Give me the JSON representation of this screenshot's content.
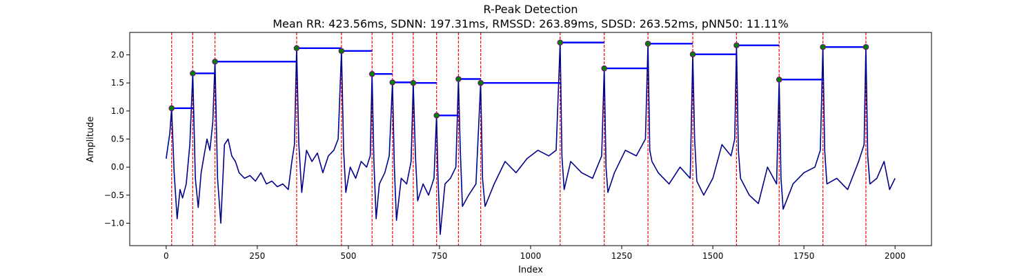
{
  "chart_data": {
    "type": "line",
    "title": "R-Peak Detection",
    "subtitle": "Mean RR: 423.56ms, SDNN: 197.31ms, RMSSD: 263.89ms, SDSD: 263.52ms, pNN50: 11.11%",
    "xlabel": "Index",
    "ylabel": "Amplitude",
    "xlim": [
      -100,
      2100
    ],
    "ylim": [
      -1.4,
      2.4
    ],
    "xticks": [
      0,
      250,
      500,
      750,
      1000,
      1250,
      1500,
      1750,
      2000
    ],
    "yticks": [
      -1.0,
      -0.5,
      0.0,
      0.5,
      1.0,
      1.5,
      2.0
    ],
    "xtick_labels": [
      "0",
      "250",
      "500",
      "750",
      "1000",
      "1250",
      "1500",
      "1750",
      "2000"
    ],
    "ytick_labels": [
      "−1.0",
      "−0.5",
      "0.0",
      "0.5",
      "1.0",
      "1.5",
      "2.0"
    ],
    "grid": false,
    "colors": {
      "signal": "#00008b",
      "peak_marker_fill": "#008000",
      "peak_marker_edge": "#800080",
      "peak_line": "#ff0000",
      "rr_segment": "#0000ff"
    },
    "peaks": {
      "x": [
        15,
        73,
        134,
        358,
        481,
        565,
        621,
        678,
        742,
        802,
        863,
        1081,
        1202,
        1322,
        1445,
        1565,
        1682,
        1802,
        1920
      ],
      "y": [
        1.05,
        1.67,
        1.88,
        2.12,
        2.07,
        1.66,
        1.51,
        1.5,
        0.92,
        1.57,
        1.5,
        2.22,
        1.76,
        2.2,
        2.01,
        2.17,
        1.56,
        2.14,
        2.14
      ]
    },
    "rr_segments": {
      "x_start": [
        15,
        73,
        134,
        358,
        481,
        565,
        621,
        678,
        742,
        802,
        863,
        1081,
        1202,
        1322,
        1445,
        1565,
        1682,
        1802
      ],
      "x_end": [
        73,
        134,
        358,
        481,
        565,
        621,
        678,
        742,
        802,
        863,
        1081,
        1202,
        1322,
        1445,
        1565,
        1682,
        1802,
        1920
      ],
      "y": [
        1.05,
        1.67,
        1.88,
        2.12,
        2.07,
        1.66,
        1.51,
        1.5,
        0.92,
        1.57,
        1.5,
        2.22,
        1.76,
        2.2,
        2.01,
        2.17,
        1.56,
        2.14
      ]
    },
    "signal": {
      "x": [
        0,
        5,
        10,
        15,
        22,
        30,
        38,
        45,
        55,
        65,
        73,
        80,
        88,
        96,
        104,
        112,
        120,
        128,
        134,
        141,
        150,
        160,
        170,
        180,
        190,
        200,
        215,
        230,
        245,
        260,
        275,
        290,
        305,
        320,
        335,
        345,
        352,
        358,
        364,
        372,
        385,
        400,
        415,
        430,
        445,
        460,
        472,
        481,
        487,
        493,
        505,
        520,
        535,
        550,
        560,
        565,
        570,
        576,
        585,
        600,
        612,
        621,
        626,
        632,
        645,
        660,
        672,
        678,
        684,
        690,
        705,
        720,
        735,
        742,
        746,
        752,
        765,
        780,
        795,
        802,
        807,
        813,
        830,
        850,
        863,
        868,
        875,
        900,
        930,
        960,
        990,
        1020,
        1050,
        1070,
        1081,
        1086,
        1092,
        1110,
        1140,
        1170,
        1195,
        1202,
        1207,
        1212,
        1230,
        1260,
        1290,
        1315,
        1322,
        1327,
        1333,
        1350,
        1380,
        1410,
        1438,
        1445,
        1450,
        1456,
        1475,
        1500,
        1525,
        1550,
        1560,
        1565,
        1570,
        1576,
        1600,
        1625,
        1650,
        1675,
        1682,
        1687,
        1693,
        1720,
        1750,
        1780,
        1795,
        1802,
        1807,
        1813,
        1840,
        1870,
        1900,
        1915,
        1920,
        1925,
        1931,
        1950,
        1970,
        1985,
        2000
      ],
      "y": [
        0.15,
        0.38,
        0.6,
        1.05,
        -0.1,
        -0.92,
        -0.4,
        -0.55,
        -0.3,
        0.4,
        1.67,
        -0.2,
        -0.72,
        -0.1,
        0.2,
        0.5,
        0.3,
        0.8,
        1.88,
        -0.2,
        -1.0,
        0.4,
        0.5,
        0.2,
        0.1,
        -0.1,
        -0.2,
        -0.15,
        -0.25,
        -0.1,
        -0.3,
        -0.25,
        -0.35,
        -0.3,
        -0.4,
        0.1,
        0.4,
        2.12,
        0.4,
        -0.45,
        0.3,
        0.1,
        0.25,
        -0.1,
        0.2,
        0.3,
        0.5,
        2.07,
        0.3,
        -0.45,
        0.0,
        -0.2,
        0.1,
        0.0,
        0.2,
        1.66,
        0.1,
        -0.92,
        -0.3,
        -0.1,
        0.2,
        1.51,
        0.0,
        -0.95,
        -0.2,
        -0.3,
        0.1,
        1.5,
        0.2,
        -0.6,
        -0.3,
        -0.5,
        -0.2,
        0.92,
        -0.2,
        -1.2,
        -0.3,
        -0.2,
        0.0,
        1.57,
        0.3,
        -0.7,
        -0.5,
        -0.3,
        1.5,
        -0.2,
        -0.7,
        -0.3,
        0.1,
        -0.1,
        0.15,
        0.3,
        0.2,
        0.3,
        2.22,
        0.2,
        -0.4,
        0.1,
        -0.1,
        -0.2,
        0.2,
        1.76,
        0.0,
        -0.45,
        -0.1,
        0.3,
        0.2,
        0.5,
        2.2,
        0.3,
        0.1,
        -0.1,
        -0.3,
        0.0,
        -0.2,
        2.01,
        0.5,
        -0.25,
        -0.5,
        -0.2,
        0.4,
        0.2,
        0.5,
        2.17,
        0.3,
        -0.2,
        -0.5,
        -0.65,
        0.0,
        -0.3,
        1.56,
        -0.2,
        -0.75,
        -0.3,
        -0.1,
        0.0,
        0.3,
        2.14,
        0.3,
        -0.3,
        -0.2,
        -0.4,
        0.1,
        0.4,
        2.14,
        0.2,
        -0.3,
        -0.2,
        0.1,
        -0.4,
        -0.2
      ]
    }
  }
}
